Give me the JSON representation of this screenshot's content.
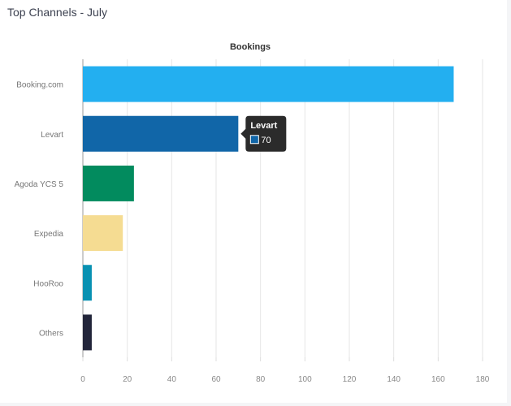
{
  "card": {
    "title": "Top Channels - July"
  },
  "chart_data": {
    "type": "bar",
    "orientation": "horizontal",
    "title": "Bookings",
    "categories": [
      "Booking.com",
      "Levart",
      "Agoda YCS 5",
      "Expedia",
      "HooRoo",
      "Others"
    ],
    "values": [
      167,
      70,
      23,
      18,
      4,
      4
    ],
    "colors": [
      "#23aff0",
      "#1166a8",
      "#028b5e",
      "#f5dc92",
      "#0891b2",
      "#22253a"
    ],
    "xlim": [
      0,
      180
    ],
    "xticks": [
      0,
      20,
      40,
      60,
      80,
      100,
      120,
      140,
      160,
      180
    ],
    "grid": true,
    "tooltip": {
      "category": "Levart",
      "value": "70",
      "color": "#1166a8"
    }
  }
}
